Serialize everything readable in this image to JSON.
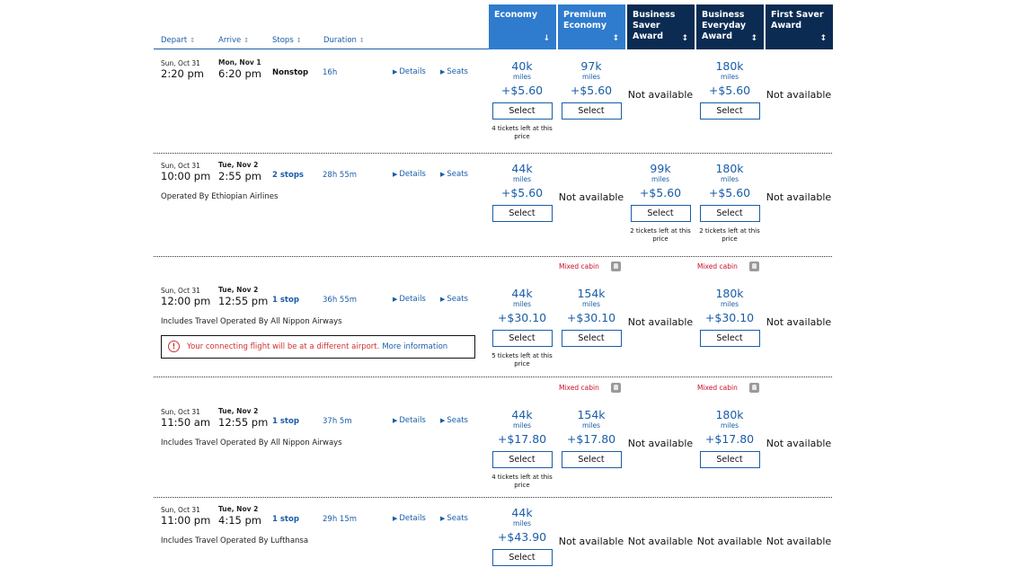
{
  "header": {
    "sort_columns": [
      {
        "label": "Depart",
        "arrow": "↕"
      },
      {
        "label": "Arrive",
        "arrow": "↕"
      },
      {
        "label": "Stops",
        "arrow": "↕"
      },
      {
        "label": "Duration",
        "arrow": "↕"
      }
    ],
    "cabins": [
      {
        "label": "Economy",
        "sorter": "↓",
        "color": "#2f7bcd"
      },
      {
        "label": "Premium Economy",
        "sorter": "↕",
        "color": "#2f7bcd"
      },
      {
        "label": "Business Saver Award",
        "sorter": "↕",
        "color": "#0b2b52"
      },
      {
        "label": "Business Everyday Award",
        "sorter": "↕",
        "color": "#0b2b52"
      },
      {
        "label": "First Saver Award",
        "sorter": "↕",
        "color": "#0b2b52"
      }
    ]
  },
  "labels": {
    "details": "Details",
    "seats": "Seats",
    "miles": "miles",
    "select": "Select",
    "not_available": "Not available",
    "mixed_cabin": "Mixed cabin"
  },
  "flights": [
    {
      "depart_date": "Sun, Oct 31",
      "depart_time": "2:20 pm",
      "arrive_date": "Mon, Nov 1",
      "arrive_time": "6:20 pm",
      "stops": "Nonstop",
      "duration": "16h",
      "operated": "",
      "fares": [
        {
          "miles": "40k",
          "tax": "+$5.60",
          "left": "4 tickets left at this price"
        },
        {
          "miles": "97k",
          "tax": "+$5.60",
          "left": ""
        },
        null,
        {
          "miles": "180k",
          "tax": "+$5.60",
          "left": ""
        },
        null
      ]
    },
    {
      "depart_date": "Sun, Oct 31",
      "depart_time": "10:00 pm",
      "arrive_date": "Tue, Nov 2",
      "arrive_time": "2:55 pm",
      "stops": "2 stops",
      "duration": "28h 55m",
      "operated": "Operated By Ethiopian Airlines",
      "fares": [
        {
          "miles": "44k",
          "tax": "+$5.60",
          "left": ""
        },
        null,
        {
          "miles": "99k",
          "tax": "+$5.60",
          "left": "2 tickets left at this price"
        },
        {
          "miles": "180k",
          "tax": "+$5.60",
          "left": "2 tickets left at this price"
        },
        null
      ]
    },
    {
      "depart_date": "Sun, Oct 31",
      "depart_time": "12:00 pm",
      "arrive_date": "Tue, Nov 2",
      "arrive_time": "12:55 pm",
      "stops": "1 stop",
      "duration": "36h 55m",
      "operated": "Includes Travel Operated By All Nippon Airways",
      "warning": {
        "text": "Your connecting flight will be at a different airport.",
        "link": "More information"
      },
      "mixed": [
        1,
        3
      ],
      "fares": [
        {
          "miles": "44k",
          "tax": "+$30.10",
          "left": "5 tickets left at this price"
        },
        {
          "miles": "154k",
          "tax": "+$30.10",
          "left": ""
        },
        null,
        {
          "miles": "180k",
          "tax": "+$30.10",
          "left": ""
        },
        null
      ]
    },
    {
      "depart_date": "Sun, Oct 31",
      "depart_time": "11:50 am",
      "arrive_date": "Tue, Nov 2",
      "arrive_time": "12:55 pm",
      "stops": "1 stop",
      "duration": "37h 5m",
      "operated": "Includes Travel Operated By All Nippon Airways",
      "mixed": [
        1,
        3
      ],
      "fares": [
        {
          "miles": "44k",
          "tax": "+$17.80",
          "left": "4 tickets left at this price"
        },
        {
          "miles": "154k",
          "tax": "+$17.80",
          "left": ""
        },
        null,
        {
          "miles": "180k",
          "tax": "+$17.80",
          "left": ""
        },
        null
      ]
    },
    {
      "depart_date": "Sun, Oct 31",
      "depart_time": "11:00 pm",
      "arrive_date": "Tue, Nov 2",
      "arrive_time": "4:15 pm",
      "stops": "1 stop",
      "duration": "29h 15m",
      "operated": "Includes Travel Operated By Lufthansa",
      "fares": [
        {
          "miles": "44k",
          "tax": "+$43.90",
          "left": ""
        },
        null,
        null,
        null,
        null
      ]
    }
  ]
}
